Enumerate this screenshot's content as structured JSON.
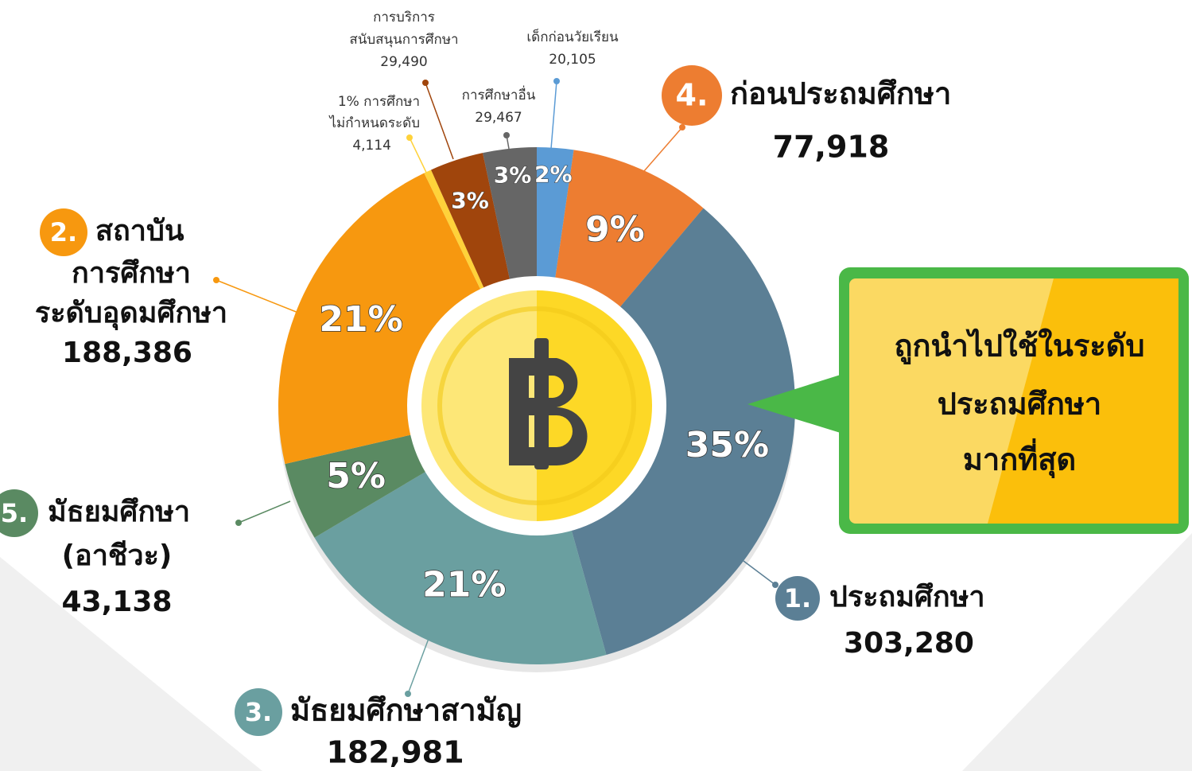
{
  "chart_data": {
    "type": "pie",
    "donut": true,
    "slices": [
      {
        "name": [
          "เด็กก่อนวัยเรียน"
        ],
        "value": 20105,
        "value_label": "20,105",
        "percent_label": "2%",
        "color": "#5b9bd5"
      },
      {
        "rank": "4.",
        "name": [
          "ก่อนประถมศึกษา"
        ],
        "value": 77918,
        "value_label": "77,918",
        "percent_label": "9%",
        "color": "#ed7d31"
      },
      {
        "rank": "1.",
        "name": [
          "ประถมศึกษา"
        ],
        "value": 303280,
        "value_label": "303,280",
        "percent_label": "35%",
        "color": "#5b7f95"
      },
      {
        "rank": "3.",
        "name": [
          "มัธยมศึกษาสามัญ"
        ],
        "value": 182981,
        "value_label": "182,981",
        "percent_label": "21%",
        "color": "#6a9fa0"
      },
      {
        "rank": "5.",
        "name": [
          "มัธยมศึกษา",
          "(อาชีวะ)"
        ],
        "value": 43138,
        "value_label": "43,138",
        "percent_label": "5%",
        "color": "#5a8a62"
      },
      {
        "rank": "2.",
        "name": [
          "สถาบัน",
          "การศึกษา",
          "ระดับอุดมศึกษา"
        ],
        "value": 188386,
        "value_label": "188,386",
        "percent_label": "21%",
        "color": "#f7980f"
      },
      {
        "name": [
          "1% การศึกษา",
          "ไม่กำหนดระดับ"
        ],
        "value": 4114,
        "value_label": "4,114",
        "color": "#ffd23a"
      },
      {
        "name": [
          "การบริการ",
          "สนับสนุนการศึกษา"
        ],
        "value": 29490,
        "value_label": "29,490",
        "percent_label": "3%",
        "color": "#a0450c"
      },
      {
        "name": [
          "การศึกษาอื่น"
        ],
        "value": 29467,
        "value_label": "29,467",
        "percent_label": "3%",
        "color": "#666666"
      }
    ],
    "callout": [
      "ถูกนำไปใช้ในระดับ",
      "ประถมศึกษา",
      "มากที่สุด"
    ]
  }
}
